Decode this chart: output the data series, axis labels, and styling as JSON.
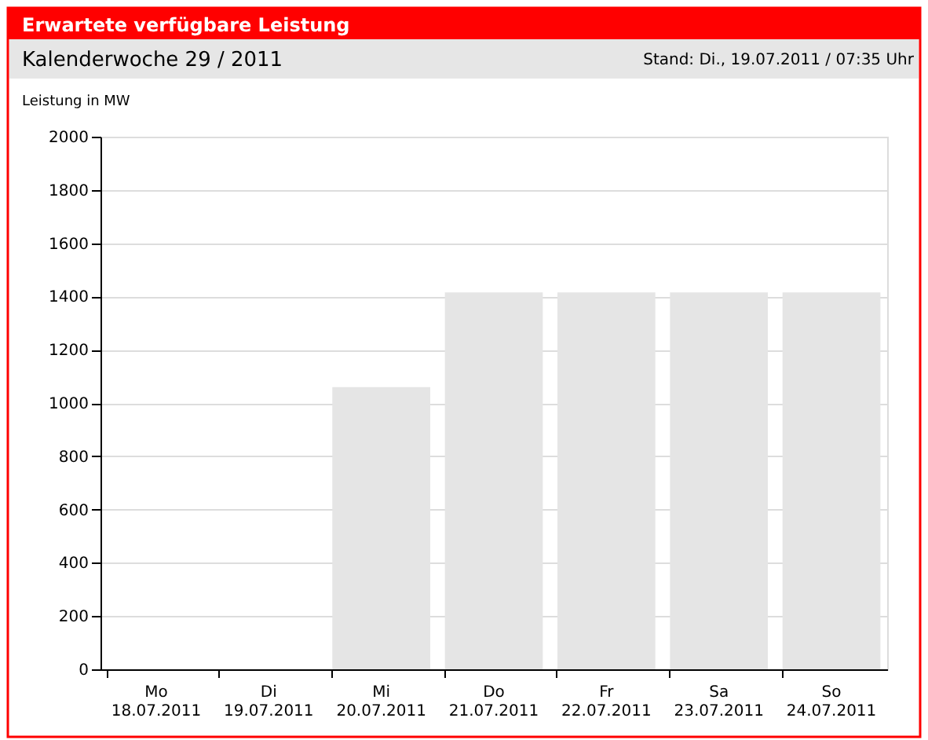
{
  "chart_data": {
    "type": "bar",
    "title": "Erwartete verfügbare Leistung",
    "subtitle": "Kalenderwoche 29 / 2011",
    "annotations": [
      "Stand: Di., 19.07.2011 / 07:35 Uhr"
    ],
    "ylabel": "Leistung in MW",
    "categories": [
      "Mo\n18.07.2011",
      "Di\n19.07.2011",
      "Mi\n20.07.2011",
      "Do\n21.07.2011",
      "Fr\n22.07.2011",
      "Sa\n23.07.2011",
      "So\n24.07.2011"
    ],
    "values": [
      null,
      null,
      1060,
      1415,
      1415,
      1415,
      1415
    ],
    "color": "#e5e5e5",
    "ylim": [
      0,
      2000
    ],
    "yticks": [
      0,
      200,
      400,
      600,
      800,
      1000,
      1200,
      1400,
      1600,
      1800,
      2000
    ],
    "grid": "y"
  }
}
